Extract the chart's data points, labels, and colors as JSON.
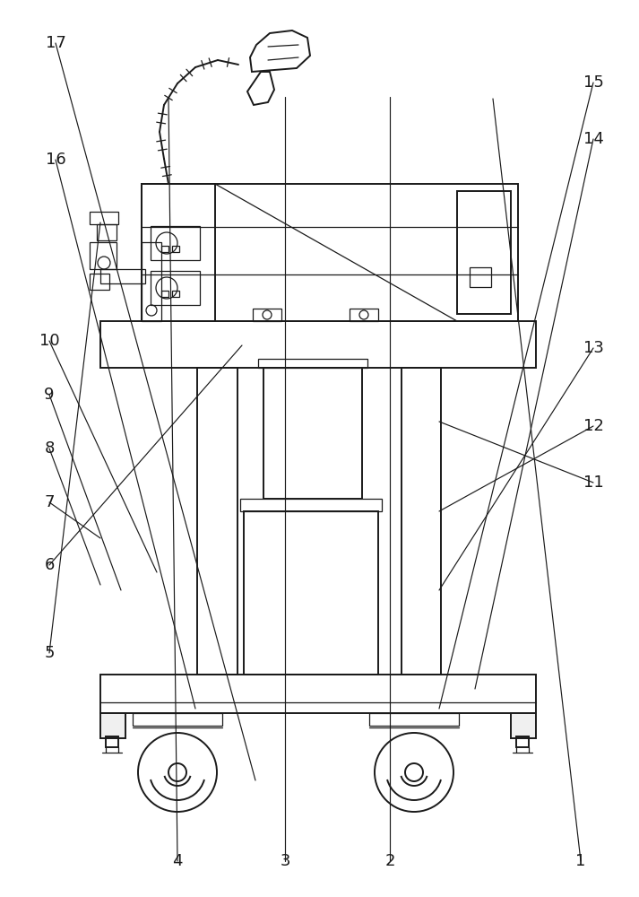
{
  "bg_color": "#ffffff",
  "line_color": "#1a1a1a",
  "lw_main": 1.4,
  "lw_thin": 0.9,
  "label_fontsize": 13,
  "annotations": [
    [
      "17",
      285,
      870,
      62,
      48
    ],
    [
      "16",
      218,
      790,
      62,
      178
    ],
    [
      "15",
      490,
      790,
      662,
      92
    ],
    [
      "14",
      530,
      768,
      662,
      155
    ],
    [
      "13",
      490,
      658,
      662,
      388
    ],
    [
      "12",
      490,
      570,
      662,
      475
    ],
    [
      "11",
      490,
      470,
      662,
      538
    ],
    [
      "10",
      175,
      638,
      55,
      380
    ],
    [
      "9",
      135,
      658,
      55,
      440
    ],
    [
      "8",
      112,
      652,
      55,
      500
    ],
    [
      "7",
      112,
      600,
      55,
      560
    ],
    [
      "6",
      270,
      385,
      55,
      630
    ],
    [
      "5",
      112,
      248,
      55,
      728
    ],
    [
      "4",
      188,
      110,
      198,
      960
    ],
    [
      "3",
      318,
      108,
      318,
      960
    ],
    [
      "2",
      435,
      108,
      435,
      960
    ],
    [
      "1",
      550,
      110,
      648,
      960
    ]
  ]
}
